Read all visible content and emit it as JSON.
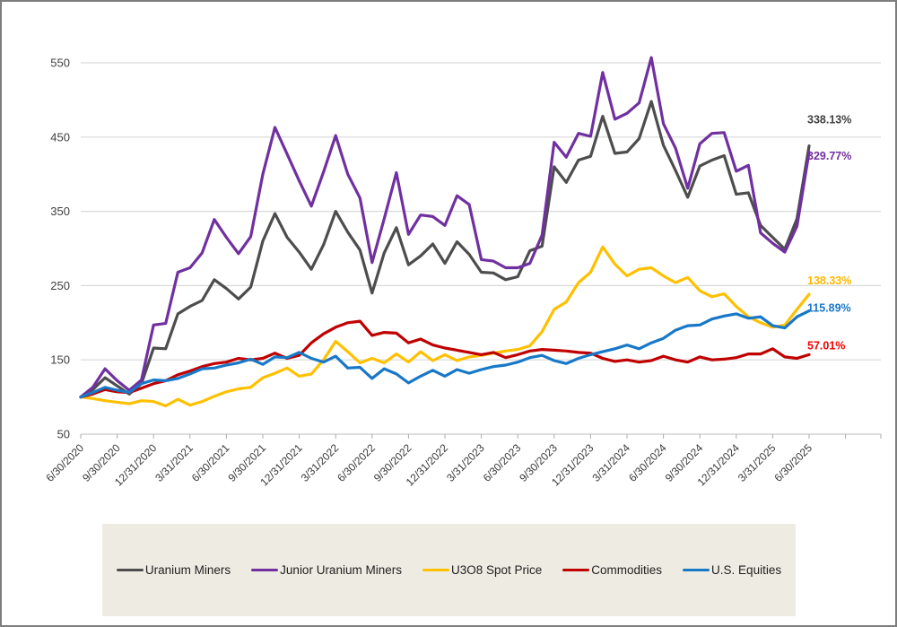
{
  "chart_data": {
    "type": "line",
    "title": "",
    "xlabel": "",
    "ylabel": "",
    "y_ticks": [
      550,
      450,
      350,
      250,
      150,
      50
    ],
    "y_range": [
      50,
      550
    ],
    "grid": "horizontal",
    "legend_position": "bottom",
    "x_frequency": "monthly",
    "x_tick_labels": [
      "6/30/2020",
      "9/30/2020",
      "12/31/2020",
      "3/31/2021",
      "6/30/2021",
      "9/30/2021",
      "12/31/2021",
      "3/31/2022",
      "6/30/2022",
      "9/30/2022",
      "12/31/2022",
      "3/31/2023",
      "6/30/2023",
      "9/30/2023",
      "12/31/2023",
      "3/31/2024",
      "6/30/2024",
      "9/30/2024",
      "12/31/2024",
      "3/31/2025",
      "6/30/2025"
    ],
    "series": [
      {
        "name": "Uranium Miners",
        "color": "#4d4d4d",
        "end_label": "338.13%",
        "end_label_color": "#404040",
        "values": [
          100,
          110,
          126,
          115,
          104,
          118,
          166,
          165,
          212,
          222,
          230,
          258,
          246,
          232,
          248,
          310,
          347,
          315,
          295,
          272,
          305,
          350,
          322,
          298,
          240,
          294,
          328,
          278,
          290,
          306,
          280,
          309,
          292,
          268,
          267,
          258,
          262,
          297,
          303,
          410,
          389,
          419,
          424,
          478,
          428,
          430,
          448,
          498,
          439,
          405,
          369,
          411,
          419,
          425,
          373,
          375,
          331,
          315,
          299,
          340,
          438.13
        ]
      },
      {
        "name": "Junior Uranium Miners",
        "color": "#7030a0",
        "end_label": "329.77%",
        "end_label_color": "#7030a0",
        "values": [
          100,
          113,
          138,
          122,
          109,
          123,
          197,
          199,
          268,
          274,
          294,
          339,
          315,
          293,
          316,
          400,
          463,
          427,
          391,
          357,
          403,
          452,
          400,
          368,
          281,
          340,
          402,
          319,
          345,
          343,
          331,
          371,
          359,
          285,
          283,
          274,
          274,
          280,
          318,
          443,
          423,
          455,
          451,
          537,
          474,
          482,
          496,
          557,
          468,
          435,
          381,
          441,
          455,
          456,
          404,
          412,
          321,
          307,
          295,
          330,
          429.77
        ]
      },
      {
        "name": "U3O8 Spot Price",
        "color": "#ffc000",
        "end_label": "138.33%",
        "end_label_color": "#ffb800",
        "values": [
          100,
          98,
          95,
          93,
          91,
          95,
          94,
          88,
          97,
          89,
          94,
          101,
          107,
          111,
          113,
          126,
          132,
          139,
          128,
          131,
          150,
          175,
          161,
          146,
          152,
          146,
          158,
          147,
          161,
          149,
          157,
          149,
          154,
          156,
          159,
          162,
          164,
          169,
          188,
          218,
          228,
          254,
          268,
          302,
          279,
          263,
          272,
          274,
          263,
          254,
          261,
          243,
          235,
          239,
          222,
          208,
          200,
          194,
          197,
          218,
          238.33
        ]
      },
      {
        "name": "Commodities",
        "color": "#c00000",
        "end_label": "57.01%",
        "end_label_color": "#f50000",
        "values": [
          100,
          104,
          110,
          107,
          106,
          112,
          118,
          122,
          130,
          135,
          141,
          145,
          147,
          152,
          150,
          152,
          159,
          152,
          156,
          173,
          185,
          194,
          200,
          202,
          183,
          187,
          186,
          173,
          178,
          170,
          166,
          163,
          160,
          157,
          160,
          153,
          157,
          162,
          164,
          163,
          162,
          160,
          159,
          152,
          148,
          150,
          147,
          149,
          155,
          150,
          147,
          154,
          150,
          151,
          153,
          158,
          158,
          165,
          154,
          152,
          157.01
        ]
      },
      {
        "name": "U.S. Equities",
        "color": "#1878c8",
        "end_label": "115.89%",
        "end_label_color": "#1878c8",
        "values": [
          100,
          106,
          113,
          109,
          106,
          118,
          123,
          122,
          125,
          131,
          138,
          139,
          143,
          146,
          151,
          144,
          154,
          153,
          160,
          152,
          147,
          155,
          139,
          140,
          125,
          138,
          131,
          119,
          128,
          136,
          128,
          137,
          132,
          137,
          141,
          143,
          147,
          153,
          156,
          149,
          145,
          152,
          157,
          161,
          165,
          170,
          165,
          173,
          179,
          190,
          196,
          197,
          205,
          209,
          212,
          206,
          208,
          196,
          193,
          208,
          215.89
        ]
      }
    ]
  }
}
